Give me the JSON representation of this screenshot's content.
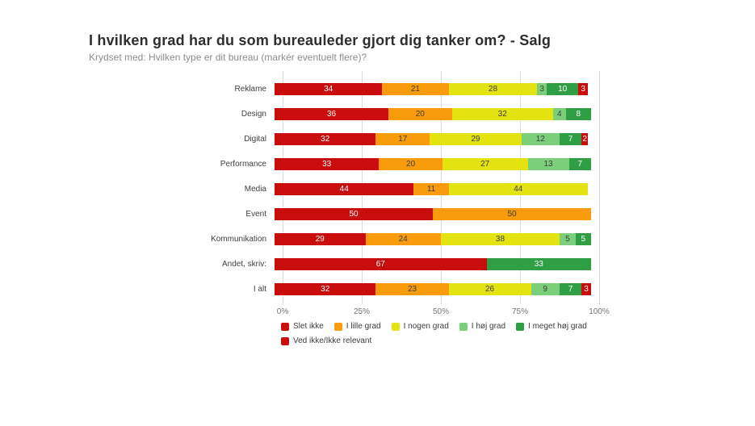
{
  "title": "I hvilken grad har du som bureauleder gjort dig tanker om? - Salg",
  "subtitle": "Krydset med: Hvilken type er dit bureau (markér eventuelt flere)?",
  "chart_data": {
    "type": "bar",
    "orientation": "horizontal",
    "stacked": true,
    "unit": "percent",
    "title": "I hvilken grad har du som bureauleder gjort dig tanker om? - Salg",
    "subtitle": "Krydset med: Hvilken type er dit bureau (markér eventuelt flere)?",
    "categories": [
      "Reklame",
      "Design",
      "Digital",
      "Performance",
      "Media",
      "Event",
      "Kommunikation",
      "Andet, skriv:",
      "I alt"
    ],
    "series": [
      {
        "name": "Slet ikke",
        "color": "#c90d0d",
        "text_color": "#ffffff",
        "values": [
          34,
          36,
          32,
          33,
          44,
          50,
          29,
          67,
          32
        ]
      },
      {
        "name": "I lille grad",
        "color": "#f89b0d",
        "text_color": "#3d3d3d",
        "values": [
          21,
          20,
          17,
          20,
          11,
          50,
          24,
          0,
          23
        ]
      },
      {
        "name": "I nogen grad",
        "color": "#e3e312",
        "text_color": "#3d3d3d",
        "values": [
          28,
          32,
          29,
          27,
          44,
          0,
          38,
          0,
          26
        ]
      },
      {
        "name": "I høj grad",
        "color": "#7bcf7b",
        "text_color": "#3d3d3d",
        "values": [
          3,
          4,
          12,
          13,
          0,
          0,
          5,
          0,
          9
        ]
      },
      {
        "name": "I meget høj grad",
        "color": "#2f9e44",
        "text_color": "#ffffff",
        "values": [
          10,
          8,
          7,
          7,
          0,
          0,
          5,
          33,
          7
        ]
      },
      {
        "name": "Ved ikke/Ikke relevant",
        "color": "#c90d0d",
        "text_color": "#ffffff",
        "values": [
          3,
          0,
          2,
          0,
          0,
          0,
          0,
          0,
          3
        ]
      }
    ],
    "x_axis": {
      "ticks": [
        "0%",
        "25%",
        "50%",
        "75%",
        "100%"
      ],
      "tick_positions": [
        0,
        25,
        50,
        75,
        100
      ],
      "range": [
        0,
        100
      ]
    },
    "grid": true,
    "legend_position": "bottom",
    "legend_rows": [
      [
        "Slet ikke",
        "I lille grad",
        "I nogen grad",
        "I høj grad",
        "I meget høj grad"
      ],
      [
        "Ved ikke/Ikke relevant"
      ]
    ]
  }
}
